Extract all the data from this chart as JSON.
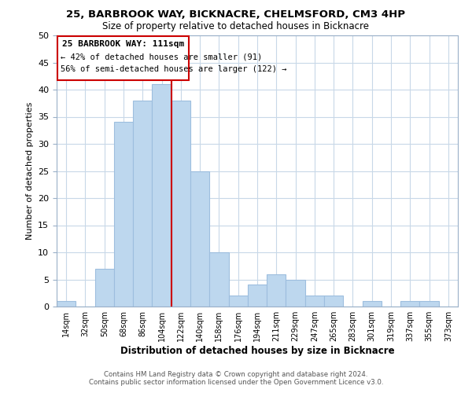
{
  "title": "25, BARBROOK WAY, BICKNACRE, CHELMSFORD, CM3 4HP",
  "subtitle": "Size of property relative to detached houses in Bicknacre",
  "bar_color": "#bdd7ee",
  "bar_edge_color": "#9dbede",
  "bin_labels": [
    "14sqm",
    "32sqm",
    "50sqm",
    "68sqm",
    "86sqm",
    "104sqm",
    "122sqm",
    "140sqm",
    "158sqm",
    "176sqm",
    "194sqm",
    "211sqm",
    "229sqm",
    "247sqm",
    "265sqm",
    "283sqm",
    "301sqm",
    "319sqm",
    "337sqm",
    "355sqm",
    "373sqm"
  ],
  "bar_heights": [
    1,
    0,
    7,
    34,
    38,
    41,
    38,
    25,
    10,
    2,
    4,
    6,
    5,
    2,
    2,
    0,
    1,
    0,
    1,
    1,
    0
  ],
  "ylabel": "Number of detached properties",
  "xlabel": "Distribution of detached houses by size in Bicknacre",
  "ylim": [
    0,
    50
  ],
  "yticks": [
    0,
    5,
    10,
    15,
    20,
    25,
    30,
    35,
    40,
    45,
    50
  ],
  "vline_color": "#cc0000",
  "annotation_title": "25 BARBROOK WAY: 111sqm",
  "annotation_line1": "← 42% of detached houses are smaller (91)",
  "annotation_line2": "56% of semi-detached houses are larger (122) →",
  "annotation_box_color": "#ffffff",
  "annotation_box_edge": "#cc0000",
  "footer_line1": "Contains HM Land Registry data © Crown copyright and database right 2024.",
  "footer_line2": "Contains public sector information licensed under the Open Government Licence v3.0.",
  "grid_color": "#c8d8e8",
  "spine_color": "#9ab0c8"
}
